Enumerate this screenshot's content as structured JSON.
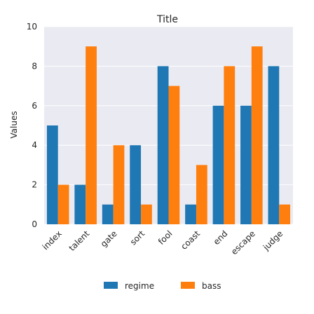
{
  "chart_data": {
    "type": "bar",
    "title": "Title",
    "xlabel": "",
    "ylabel": "Values",
    "categories": [
      "index",
      "talent",
      "gate",
      "sort",
      "fool",
      "coast",
      "end",
      "escape",
      "judge"
    ],
    "series": [
      {
        "name": "regime",
        "color": "#1f77b4",
        "values": [
          5,
          2,
          1,
          4,
          8,
          1,
          6,
          6,
          8
        ]
      },
      {
        "name": "bass",
        "color": "#ff7f0e",
        "values": [
          2,
          9,
          4,
          1,
          7,
          3,
          8,
          9,
          1
        ]
      }
    ],
    "ylim": [
      0,
      10
    ],
    "yticks": [
      0,
      2,
      4,
      6,
      8,
      10
    ],
    "grid": true,
    "legend_position": "bottom-center",
    "background_color": "#eaeaf2",
    "grid_color": "#ffffff"
  }
}
